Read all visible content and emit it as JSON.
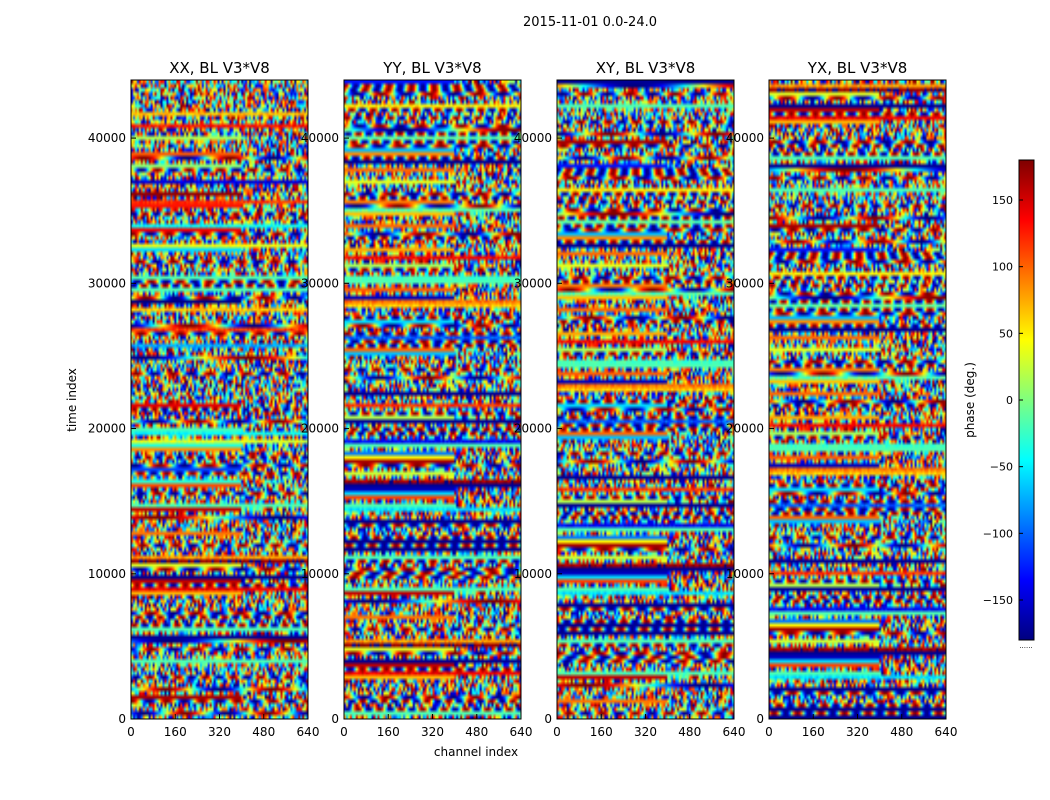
{
  "figure": {
    "suptitle": "2015-11-01 0.0-24.0",
    "xlabel": "channel index",
    "ylabel": "time index"
  },
  "chart_data": [
    {
      "type": "heatmap",
      "title": "XX, BL V3*V8",
      "xlim": [
        0,
        640
      ],
      "ylim": [
        0,
        44000
      ],
      "xticks": [
        "0",
        "160",
        "320",
        "480",
        "640"
      ],
      "yticks": [
        "0",
        "10000",
        "20000",
        "30000",
        "40000"
      ]
    },
    {
      "type": "heatmap",
      "title": "YY, BL V3*V8",
      "xlim": [
        0,
        640
      ],
      "ylim": [
        0,
        44000
      ],
      "xticks": [
        "0",
        "160",
        "320",
        "480",
        "640"
      ],
      "yticks": [
        "0",
        "10000",
        "20000",
        "30000",
        "40000"
      ]
    },
    {
      "type": "heatmap",
      "title": "XY, BL V3*V8",
      "xlim": [
        0,
        640
      ],
      "ylim": [
        0,
        44000
      ],
      "xticks": [
        "0",
        "160",
        "320",
        "480",
        "640"
      ],
      "yticks": [
        "0",
        "10000",
        "20000",
        "30000",
        "40000"
      ]
    },
    {
      "type": "heatmap",
      "title": "YX, BL V3*V8",
      "xlim": [
        0,
        640
      ],
      "ylim": [
        0,
        44000
      ],
      "xticks": [
        "0",
        "160",
        "320",
        "480",
        "640"
      ],
      "yticks": [
        "0",
        "10000",
        "20000",
        "30000",
        "40000"
      ]
    }
  ],
  "colorbar": {
    "label": "phase (deg.)",
    "vmin": -180,
    "vmax": 180,
    "ticks": [
      "150",
      "100",
      "50",
      "0",
      "−50",
      "−100",
      "−150"
    ],
    "tick_values": [
      150,
      100,
      50,
      0,
      -50,
      -100,
      -150
    ],
    "colormap": "jet",
    "colors": [
      "#00007f",
      "#0000ff",
      "#007fff",
      "#00ffff",
      "#7fff7f",
      "#ffff00",
      "#ff7f00",
      "#ff0000",
      "#7f0000"
    ],
    "footnote": "......"
  }
}
